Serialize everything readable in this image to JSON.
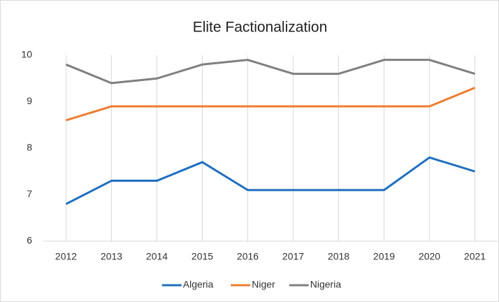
{
  "chart_data": {
    "type": "line",
    "title": "Elite Factionalization",
    "categories": [
      "2012",
      "2013",
      "2014",
      "2015",
      "2016",
      "2017",
      "2018",
      "2019",
      "2020",
      "2021"
    ],
    "series": [
      {
        "name": "Algeria",
        "color": "#1f6fbf",
        "values": [
          6.8,
          7.3,
          7.3,
          7.7,
          7.1,
          7.1,
          7.1,
          7.1,
          7.8,
          7.5
        ]
      },
      {
        "name": "Niger",
        "color": "#ed7d31",
        "values": [
          8.6,
          8.9,
          8.9,
          8.9,
          8.9,
          8.9,
          8.9,
          8.9,
          8.9,
          9.3
        ]
      },
      {
        "name": "Nigeria",
        "color": "#7f7f7f",
        "values": [
          9.8,
          9.4,
          9.5,
          9.8,
          9.9,
          9.6,
          9.6,
          9.9,
          9.9,
          9.6
        ]
      }
    ],
    "ylim": [
      6,
      10
    ],
    "yticks": [
      6,
      7,
      8,
      9,
      10
    ],
    "grid": true,
    "legend": "bottom"
  }
}
